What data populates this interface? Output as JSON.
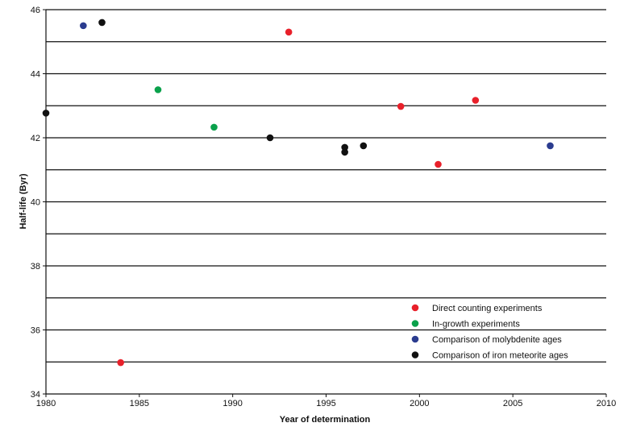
{
  "chart_data": {
    "type": "scatter",
    "title": "",
    "xlabel": "Year of determination",
    "ylabel": "Half-life (Byr)",
    "xlim": [
      1980,
      2010
    ],
    "ylim": [
      34,
      46
    ],
    "x_ticks": [
      1980,
      1985,
      1990,
      1995,
      2000,
      2005,
      2010
    ],
    "y_ticks": [
      34,
      36,
      38,
      40,
      42,
      44,
      46
    ],
    "grid": "horizontal lines at every 1 Byr",
    "legend_position": "bottom-right",
    "series": [
      {
        "name": "Direct counting experiments",
        "color": "#e8202a",
        "points": [
          [
            1984,
            34.98
          ],
          [
            1993,
            45.3
          ],
          [
            1999,
            42.98
          ],
          [
            2001,
            41.17
          ],
          [
            2003,
            43.17
          ]
        ]
      },
      {
        "name": "In-growth experiments",
        "color": "#0aa14b",
        "points": [
          [
            1986,
            43.5
          ],
          [
            1989,
            42.33
          ]
        ]
      },
      {
        "name": "Comparison of molybdenite ages",
        "color": "#2b3c8f",
        "points": [
          [
            1982,
            45.5
          ],
          [
            2007,
            41.75
          ]
        ]
      },
      {
        "name": "Comparison of iron meteorite ages",
        "color": "#111111",
        "points": [
          [
            1980,
            42.77
          ],
          [
            1983,
            45.6
          ],
          [
            1992,
            42.0
          ],
          [
            1996,
            41.55
          ],
          [
            1996,
            41.7
          ],
          [
            1997,
            41.75
          ]
        ]
      }
    ]
  }
}
